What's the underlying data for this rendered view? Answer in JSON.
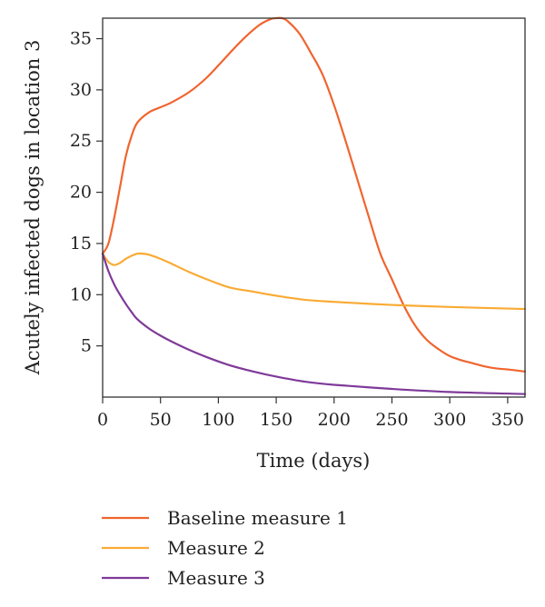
{
  "chart_data": {
    "type": "line",
    "xlabel": "Time (days)",
    "ylabel": "Acutely infected dogs in location 3",
    "xlim": [
      0,
      365
    ],
    "ylim": [
      0,
      37
    ],
    "xticks": [
      0,
      50,
      100,
      150,
      200,
      250,
      300,
      350
    ],
    "yticks": [
      5,
      10,
      15,
      20,
      25,
      30,
      35
    ],
    "grid": false,
    "legend": "bottom",
    "series": [
      {
        "name": "Baseline measure 1",
        "color": "#f0652f",
        "x": [
          0,
          5,
          10,
          15,
          20,
          25,
          30,
          40,
          50,
          60,
          75,
          90,
          105,
          120,
          135,
          145,
          150,
          155,
          160,
          170,
          180,
          190,
          200,
          210,
          220,
          230,
          240,
          250,
          260,
          270,
          280,
          290,
          300,
          310,
          320,
          330,
          340,
          350,
          365
        ],
        "y": [
          14.0,
          15.0,
          17.5,
          20.5,
          23.5,
          25.5,
          26.8,
          27.8,
          28.3,
          28.8,
          29.8,
          31.2,
          33.0,
          34.8,
          36.3,
          36.9,
          37.0,
          37.0,
          36.7,
          35.5,
          33.6,
          31.5,
          28.5,
          25.0,
          21.3,
          17.6,
          14.0,
          11.5,
          9.0,
          7.0,
          5.6,
          4.7,
          4.0,
          3.6,
          3.3,
          3.0,
          2.8,
          2.7,
          2.5
        ]
      },
      {
        "name": "Measure 2",
        "color": "#f9ab34",
        "x": [
          0,
          5,
          10,
          15,
          20,
          25,
          30,
          35,
          40,
          50,
          60,
          75,
          90,
          110,
          130,
          150,
          175,
          200,
          250,
          300,
          365
        ],
        "y": [
          14.0,
          13.2,
          12.9,
          13.1,
          13.5,
          13.8,
          14.0,
          14.0,
          13.9,
          13.5,
          13.0,
          12.2,
          11.5,
          10.7,
          10.3,
          9.9,
          9.5,
          9.3,
          9.0,
          8.8,
          8.6
        ]
      },
      {
        "name": "Measure 3",
        "color": "#7f3a99",
        "x": [
          0,
          5,
          10,
          15,
          20,
          25,
          30,
          40,
          50,
          60,
          75,
          90,
          110,
          130,
          150,
          175,
          200,
          250,
          300,
          365
        ],
        "y": [
          14.0,
          12.3,
          11.0,
          10.0,
          9.1,
          8.3,
          7.6,
          6.7,
          6.0,
          5.4,
          4.6,
          3.9,
          3.1,
          2.5,
          2.0,
          1.5,
          1.2,
          0.8,
          0.5,
          0.3
        ]
      }
    ]
  }
}
